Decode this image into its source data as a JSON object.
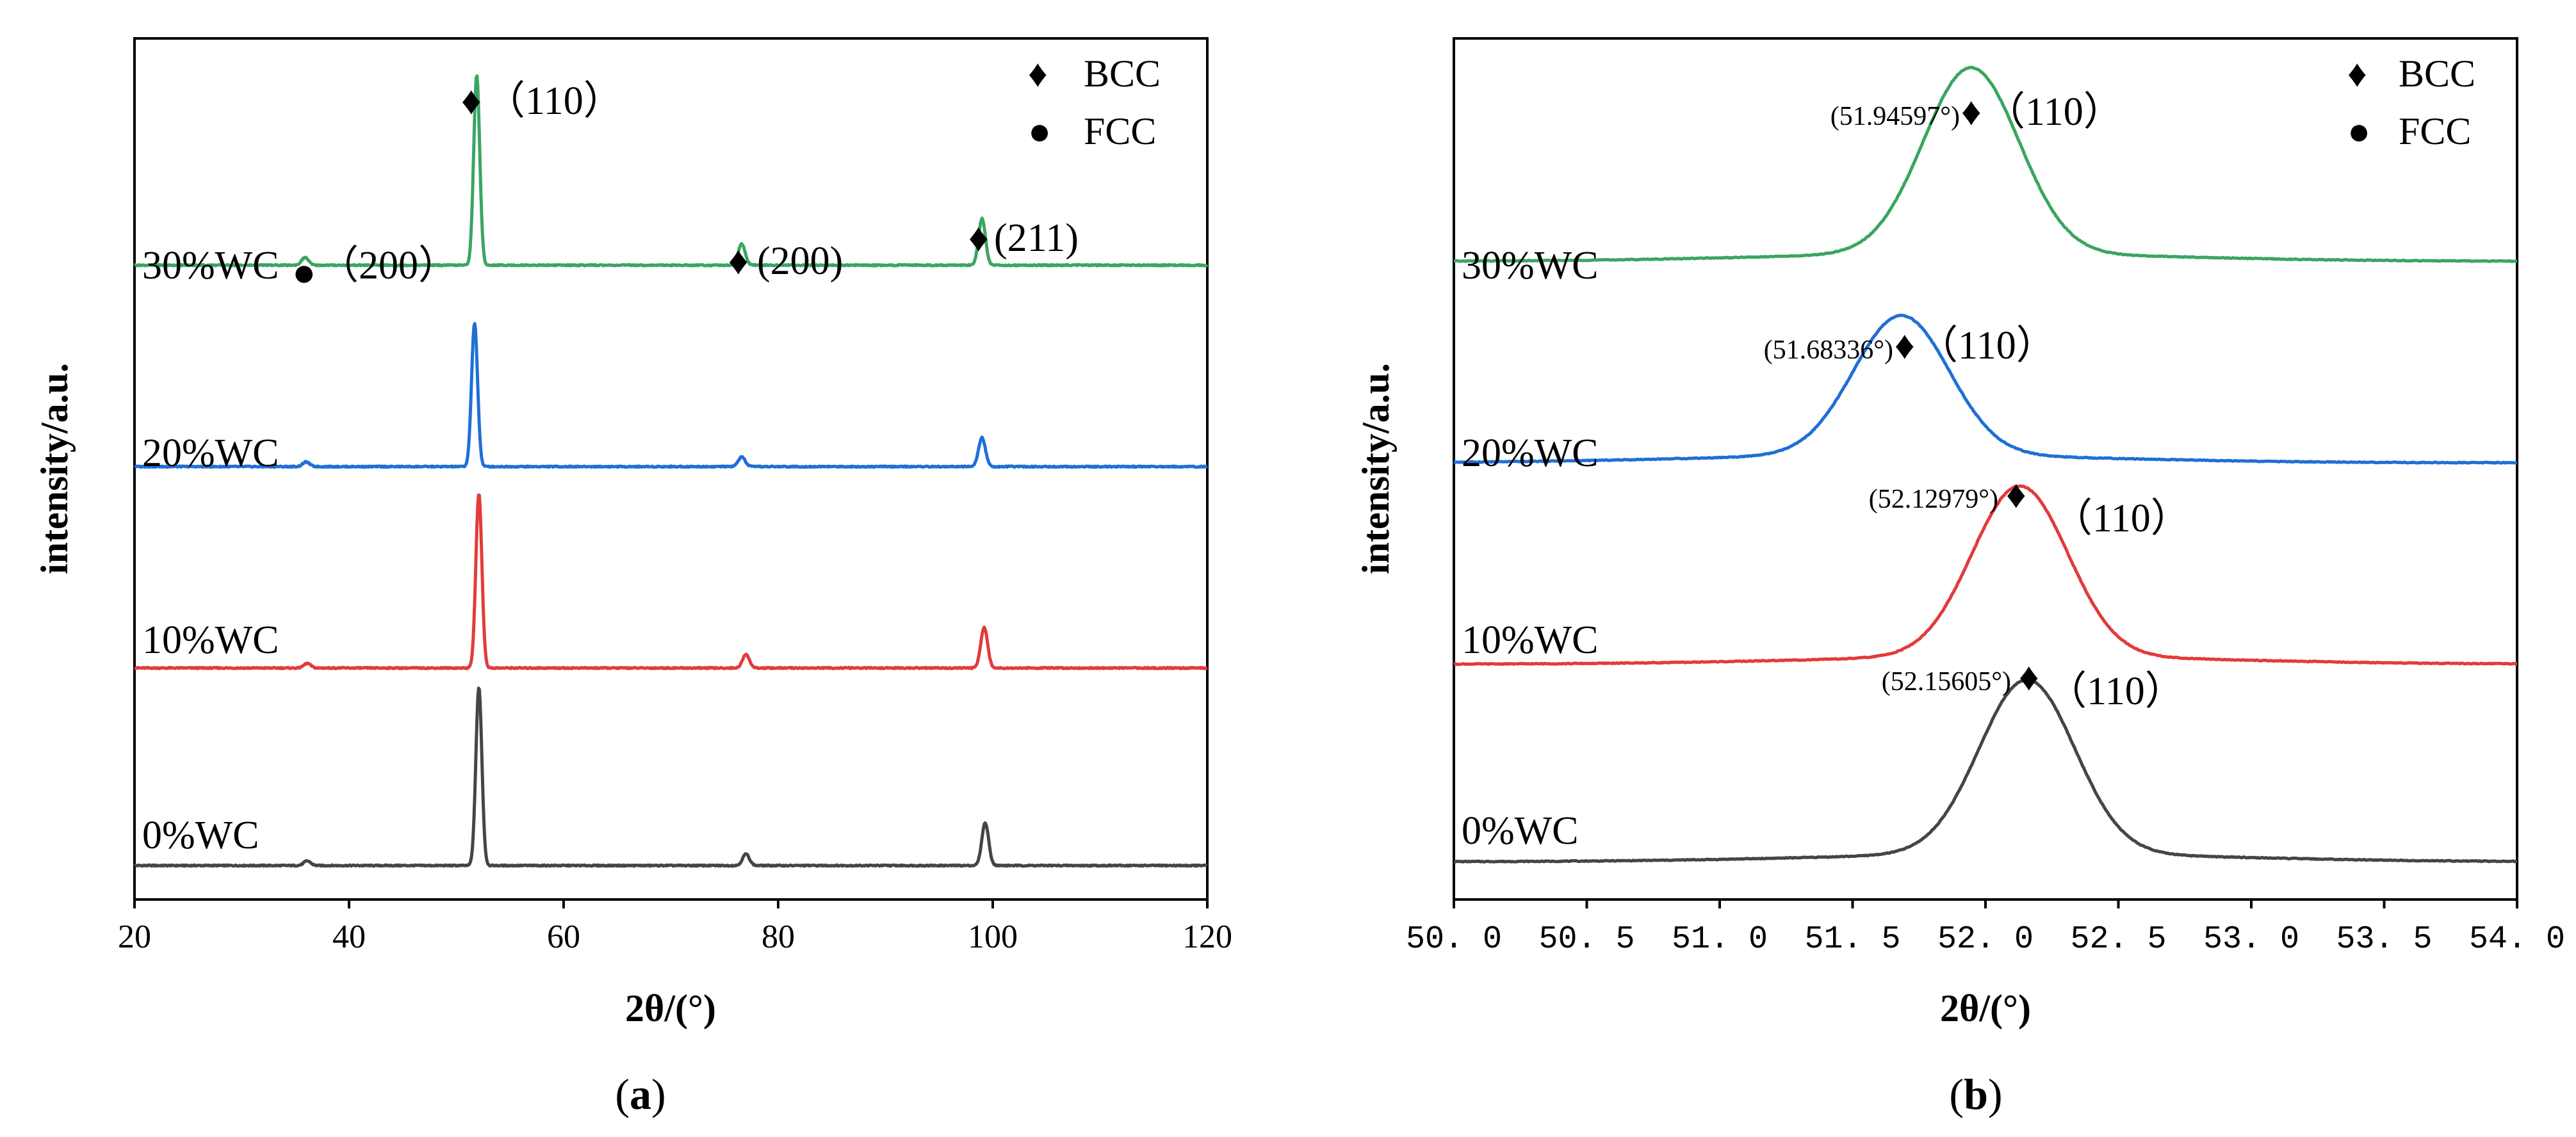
{
  "chart_data": [
    {
      "type": "line",
      "panel_label": "(a)",
      "panel_letter": "a",
      "xlabel": "2θ/(°)",
      "ylabel": "intensity/a.u.",
      "xlim": [
        20,
        120
      ],
      "xticks": [
        "20",
        "40",
        "60",
        "80",
        "100",
        "120"
      ],
      "xtick_values": [
        20,
        40,
        60,
        80,
        100,
        120
      ],
      "legend": [
        {
          "symbol": "♦",
          "label": "BCC"
        },
        {
          "symbol": "●",
          "label": "FCC"
        }
      ],
      "series": [
        {
          "name": "0%WC",
          "color": "#454545",
          "baseline": 0,
          "peaks": [
            {
              "x": 36.1,
              "height": 0.12
            },
            {
              "x": 52.1,
              "height": 4.6
            },
            {
              "x": 77.0,
              "height": 0.3
            },
            {
              "x": 99.3,
              "height": 1.1
            }
          ]
        },
        {
          "name": "10%WC",
          "color": "#e23b3b",
          "baseline": 5.1,
          "peaks": [
            {
              "x": 36.1,
              "height": 0.12
            },
            {
              "x": 52.1,
              "height": 4.5
            },
            {
              "x": 77.0,
              "height": 0.35
            },
            {
              "x": 99.2,
              "height": 1.05
            }
          ]
        },
        {
          "name": "20%WC",
          "color": "#1f6fd6",
          "baseline": 10.3,
          "peaks": [
            {
              "x": 36.0,
              "height": 0.12
            },
            {
              "x": 51.7,
              "height": 3.7
            },
            {
              "x": 76.6,
              "height": 0.25
            },
            {
              "x": 99.0,
              "height": 0.75
            }
          ]
        },
        {
          "name": "30%WC",
          "color": "#3aa561",
          "baseline": 15.5,
          "peaks": [
            {
              "x": 35.9,
              "height": 0.2
            },
            {
              "x": 51.9,
              "height": 4.9
            },
            {
              "x": 76.6,
              "height": 0.55
            },
            {
              "x": 99.0,
              "height": 1.2
            }
          ]
        }
      ],
      "annotations": [
        {
          "symbol": "♦",
          "text": "（110）"
        },
        {
          "symbol": "●",
          "text": "（200）"
        },
        {
          "symbol": "♦",
          "text": "(200)"
        },
        {
          "symbol": "♦",
          "text": "(211)"
        }
      ]
    },
    {
      "type": "line",
      "panel_label": "(b)",
      "panel_letter": "b",
      "xlabel": "2θ/(°)",
      "ylabel": "intensity/a.u.",
      "xlim": [
        50,
        54
      ],
      "xticks": [
        "50. 0",
        "50. 5",
        "51. 0",
        "51. 5",
        "52. 0",
        "52. 5",
        "53. 0",
        "53. 5",
        "54. 0"
      ],
      "xtick_values": [
        50,
        50.5,
        51,
        51.5,
        52,
        52.5,
        53,
        53.5,
        54
      ],
      "legend": [
        {
          "symbol": "♦",
          "label": "BCC"
        },
        {
          "symbol": "●",
          "label": "FCC"
        }
      ],
      "series": [
        {
          "name": "0%WC",
          "color": "#454545",
          "baseline": 0,
          "peak_x": 52.15605,
          "peak_height": 4.5,
          "sigma": 0.18,
          "shoulder": 0.2
        },
        {
          "name": "10%WC",
          "color": "#e23b3b",
          "baseline": 5.1,
          "peak_x": 52.12979,
          "peak_height": 4.4,
          "sigma": 0.18,
          "shoulder": 0.2
        },
        {
          "name": "20%WC",
          "color": "#1f6fd6",
          "baseline": 10.3,
          "peak_x": 51.68336,
          "peak_height": 3.6,
          "sigma": 0.18,
          "shoulder": 0.2
        },
        {
          "name": "30%WC",
          "color": "#3aa561",
          "baseline": 15.5,
          "peak_x": 51.94597,
          "peak_height": 4.8,
          "sigma": 0.18,
          "shoulder": 0.2
        }
      ],
      "annotations": [
        {
          "position": "(52.15605°)",
          "symbol": "♦",
          "text": "（110）"
        },
        {
          "position": "(52.12979°)",
          "symbol": "♦",
          "text": "（110）"
        },
        {
          "position": "(51.68336°)",
          "symbol": "♦",
          "text": "（110）"
        },
        {
          "position": "(51.94597°)",
          "symbol": "♦",
          "text": "（110）"
        }
      ]
    }
  ]
}
